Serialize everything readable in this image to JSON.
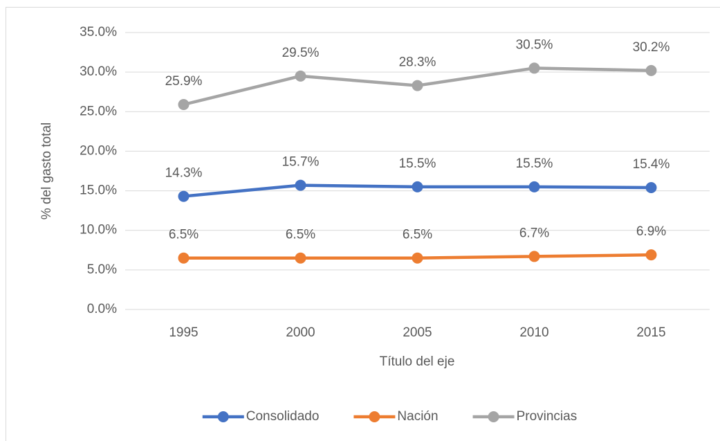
{
  "chart_data": {
    "type": "line",
    "y_label": "% del gasto total",
    "x_label": "Título del eje",
    "categories": [
      "1995",
      "2000",
      "2005",
      "2010",
      "2015"
    ],
    "series": [
      {
        "name": "Consolidado",
        "color": "#4472c4",
        "values": [
          14.3,
          15.7,
          15.5,
          15.5,
          15.4
        ],
        "value_labels": [
          "14.3%",
          "15.7%",
          "15.5%",
          "15.5%",
          "15.4%"
        ]
      },
      {
        "name": "Nación",
        "color": "#ed7d31",
        "values": [
          6.5,
          6.5,
          6.5,
          6.7,
          6.9
        ],
        "value_labels": [
          "6.5%",
          "6.5%",
          "6.5%",
          "6.7%",
          "6.9%"
        ]
      },
      {
        "name": "Provincias",
        "color": "#a5a5a5",
        "values": [
          25.9,
          29.5,
          28.3,
          30.5,
          30.2
        ],
        "value_labels": [
          "25.9%",
          "29.5%",
          "28.3%",
          "30.5%",
          "30.2%"
        ]
      }
    ],
    "ylim": [
      0,
      35
    ],
    "yticks": [
      {
        "value": 0,
        "label": "0.0%"
      },
      {
        "value": 5,
        "label": "5.0%"
      },
      {
        "value": 10,
        "label": "10.0%"
      },
      {
        "value": 15,
        "label": "15.0%"
      },
      {
        "value": 20,
        "label": "20.0%"
      },
      {
        "value": 25,
        "label": "25.0%"
      },
      {
        "value": 30,
        "label": "30.0%"
      },
      {
        "value": 35,
        "label": "35.0%"
      }
    ],
    "grid": true,
    "legend": "bottom"
  }
}
